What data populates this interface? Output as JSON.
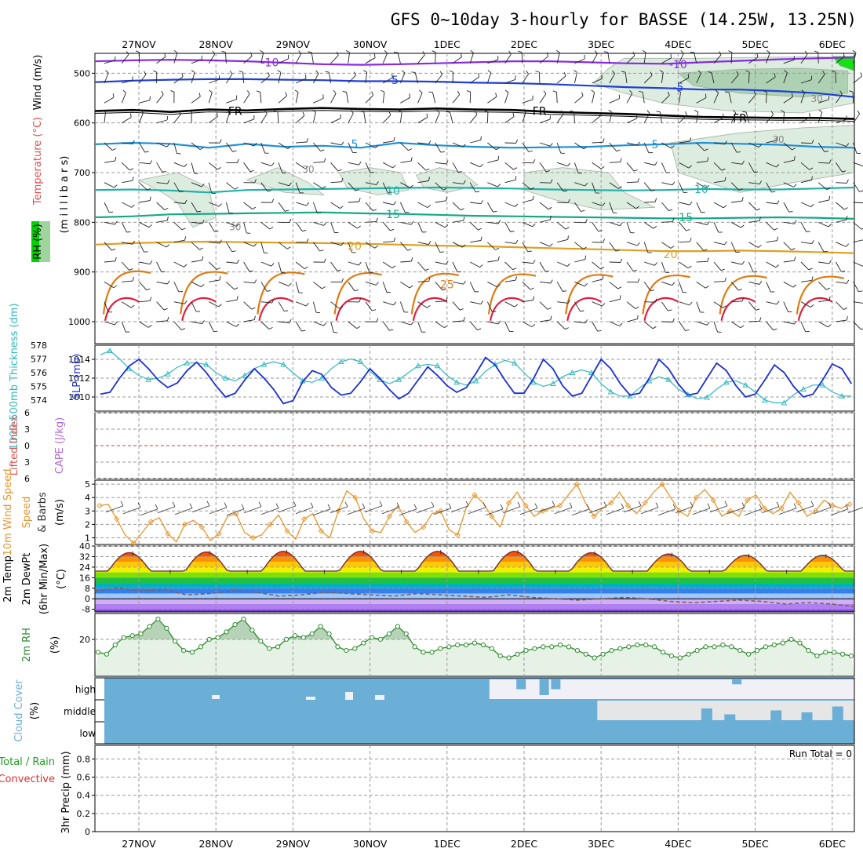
{
  "title": "GFS 0~10day 3-hourly for BASSE (14.25W, 13.25N)",
  "date_labels": [
    "27NOV",
    "28NOV",
    "29NOV",
    "30NOV",
    "1DEC",
    "2DEC",
    "3DEC",
    "4DEC",
    "5DEC",
    "6DEC"
  ],
  "colors": {
    "grid": "#9a9a9a",
    "wind_barb": "#222222",
    "rh_fill": "#d9eadb",
    "rh_fill_dark": "#a9cfae",
    "rh_fill_bright": "#00e000",
    "thickness": "#2fb8c0",
    "slp": "#1a2fd0",
    "lifted_zero": "#e03030",
    "wind10m": "#e8952a",
    "temp_fill_high": "#e03000",
    "dewpoint": "#806060",
    "rh2m": "#2e8b2e",
    "rh2m_fill": "#e5f2e5",
    "cloud": "#6baed6",
    "cloud_clear": "#f2f0f7",
    "cloud_mid_clear": "#e6e6e6"
  },
  "chart_data": [
    {
      "type": "line",
      "name": "upper-air-cross-section",
      "y_label_temperature": "Temperature (°C)",
      "y_label_wind": "Wind (m/s)",
      "y_label_rh": "RH (%)",
      "y_label_pressure": "(m i l l i b a r s)",
      "y_ticks": [
        500,
        600,
        700,
        800,
        900,
        1000
      ],
      "ylim": [
        1000,
        460
      ],
      "isotherms": [
        {
          "label": "-10",
          "color": "#8a2be2",
          "levels": [
            476,
            474,
            473,
            474,
            476,
            479,
            482,
            483,
            482,
            480,
            478,
            476,
            476,
            478,
            480,
            481,
            478,
            475,
            472,
            470,
            468
          ]
        },
        {
          "label": "-5",
          "color": "#1f3fd6",
          "levels": [
            518,
            515,
            513,
            512,
            512,
            513,
            514,
            516,
            516,
            517,
            519,
            520,
            522,
            525,
            528,
            530,
            533,
            533,
            536,
            540,
            548
          ]
        },
        {
          "label": "FR",
          "color": "#000000",
          "levels": [
            576,
            574,
            578,
            573,
            575,
            572,
            570,
            572,
            573,
            571,
            573,
            574,
            578,
            580,
            582,
            585,
            588,
            589,
            590,
            590,
            592
          ]
        },
        {
          "label": "5",
          "color": "#1e90d8",
          "levels": [
            643,
            640,
            642,
            650,
            642,
            648,
            646,
            650,
            640,
            645,
            648,
            650,
            649,
            648,
            645,
            643,
            640,
            642,
            644,
            648,
            650
          ]
        },
        {
          "label": "10",
          "color": "#20b2aa",
          "levels": [
            735,
            734,
            736,
            740,
            735,
            734,
            733,
            732,
            731,
            730,
            731,
            732,
            734,
            735,
            736,
            735,
            733,
            734,
            734,
            732,
            730
          ]
        },
        {
          "label": "15",
          "color": "#16a885",
          "levels": [
            790,
            788,
            784,
            783,
            782,
            781,
            780,
            782,
            783,
            785,
            787,
            788,
            789,
            790,
            791,
            792,
            792,
            791,
            790,
            791,
            793
          ]
        },
        {
          "label": "20",
          "color": "#e0a020",
          "levels": [
            845,
            842,
            840,
            839,
            840,
            841,
            842,
            843,
            845,
            847,
            848,
            850,
            852,
            854,
            856,
            858,
            858,
            857,
            858,
            860,
            862
          ]
        },
        {
          "label": "25",
          "color": "#e07a10",
          "levels": [
            930,
            900,
            932,
            900,
            934,
            902,
            935,
            903,
            936,
            905,
            937,
            906,
            938,
            908,
            940,
            910,
            942,
            912,
            945,
            915,
            948
          ]
        }
      ],
      "isotherm_labels": [
        {
          "label": "-10",
          "day": 1.7,
          "p": 478
        },
        {
          "label": "-10",
          "day": 7.0,
          "p": 482
        },
        {
          "label": "-5",
          "day": 3.3,
          "p": 514
        },
        {
          "label": "-5",
          "day": 7.0,
          "p": 528
        },
        {
          "label": "FR",
          "day": 1.25,
          "p": 576
        },
        {
          "label": "FR",
          "day": 5.2,
          "p": 576
        },
        {
          "label": "FR",
          "day": 7.8,
          "p": 590
        },
        {
          "label": "5",
          "day": 2.8,
          "p": 642
        },
        {
          "label": "5",
          "day": 6.7,
          "p": 643
        },
        {
          "label": "10",
          "day": 3.3,
          "p": 736
        },
        {
          "label": "10",
          "day": 7.3,
          "p": 733
        },
        {
          "label": "15",
          "day": 3.3,
          "p": 784
        },
        {
          "label": "15",
          "day": 7.1,
          "p": 790
        },
        {
          "label": "20",
          "day": 2.8,
          "p": 848
        },
        {
          "label": "20",
          "day": 6.9,
          "p": 864
        },
        {
          "label": "25",
          "day": 4.0,
          "p": 925
        }
      ],
      "rh_contour_labels": [
        {
          "label": "30",
          "day": 1.25,
          "p": 816
        },
        {
          "label": "30",
          "day": 8.3,
          "p": 640
        },
        {
          "label": "30",
          "day": 2.2,
          "p": 700
        },
        {
          "label": "30",
          "day": 8.8,
          "p": 558
        }
      ]
    },
    {
      "type": "line",
      "name": "thickness-slp",
      "y_label_thickness": "1000-500mb Thickness (dm)",
      "y_label_slp": "SLP (mb)",
      "thickness_ticks": [
        574,
        575,
        576,
        577,
        578
      ],
      "thickness_ylim": [
        573.2,
        578
      ],
      "slp_ticks": [
        1010,
        1012,
        1014
      ],
      "slp_ylim": [
        1008.5,
        1015.5
      ],
      "x_start_day": 0.0,
      "x_step_hours": 3,
      "thickness": [
        576.9,
        577.3,
        577.6,
        577.0,
        576.3,
        575.8,
        575.5,
        575.6,
        575.9,
        576.4,
        576.7,
        576.7,
        576.6,
        576.0,
        575.6,
        575.4,
        575.8,
        576.3,
        576.6,
        576.8,
        576.6,
        576.0,
        575.4,
        575.3,
        575.6,
        576.3,
        576.8,
        577.0,
        576.8,
        576.1,
        575.5,
        575.2,
        575.5,
        576.0,
        576.5,
        576.6,
        576.5,
        575.8,
        575.3,
        575.1,
        575.4,
        576.1,
        576.6,
        576.9,
        576.7,
        576.0,
        575.3,
        575.0,
        575.2,
        575.7,
        576.0,
        576.2,
        576.0,
        575.2,
        574.6,
        574.3,
        574.3,
        574.9,
        575.4,
        575.7,
        575.5,
        574.8,
        574.4,
        574.1,
        574.2,
        574.8,
        575.3,
        575.4,
        575.1,
        574.6,
        574.0,
        573.8,
        573.8,
        574.4,
        574.8,
        575.1,
        575.1,
        574.6,
        574.3,
        574.3,
        574.6,
        575.3,
        575.6,
        575.4,
        575.1,
        574.6,
        574.4,
        574.7,
        574.4,
        573.7
      ],
      "slp": [
        1011.4,
        1010.3,
        1010.5,
        1012.0,
        1013.3,
        1014.0,
        1013.0,
        1011.8,
        1011.0,
        1011.5,
        1012.8,
        1013.7,
        1012.6,
        1011.2,
        1010.0,
        1010.4,
        1011.8,
        1013.0,
        1012.0,
        1010.8,
        1009.3,
        1009.6,
        1011.6,
        1012.8,
        1012.4,
        1011.0,
        1010.2,
        1010.4,
        1011.6,
        1013.0,
        1012.0,
        1010.8,
        1009.8,
        1010.4,
        1011.8,
        1013.2,
        1012.3,
        1011.2,
        1010.5,
        1011.0,
        1012.5,
        1014.2,
        1013.4,
        1011.8,
        1010.4,
        1010.4,
        1012.0,
        1014.0,
        1013.0,
        1011.2,
        1010.1,
        1010.4,
        1012.2,
        1014.0,
        1013.0,
        1011.4,
        1010.2,
        1010.4,
        1012.0,
        1014.0,
        1013.0,
        1011.4,
        1010.2,
        1010.4,
        1012.0,
        1013.6,
        1012.8,
        1011.2,
        1010.0,
        1010.3,
        1011.8,
        1013.4,
        1012.6,
        1011.1,
        1010.0,
        1010.3,
        1011.8,
        1013.5,
        1013.0,
        1011.4,
        1010.4,
        1010.7,
        1012.2,
        1013.6,
        1013.8,
        1012.4,
        1012.8,
        1013.2
      ]
    },
    {
      "type": "line",
      "name": "lifted-index-cape",
      "y_label_lifted": "Lifted Index",
      "y_label_cape": "CAPE (J/kg)",
      "y_ticks": [
        -6,
        -3,
        0,
        3,
        6
      ],
      "y_tick_labels": [
        "6",
        "3",
        "0",
        "3",
        "6"
      ],
      "ylim": [
        6,
        -6
      ]
    },
    {
      "type": "line",
      "name": "wind-10m",
      "y_label_speed": "10m Wind Speed",
      "y_label_barbs": "& Barbs",
      "y_label_units": "(m/s)",
      "y_ticks": [
        1,
        2,
        3,
        4,
        5
      ],
      "ylim": [
        0.5,
        5.3
      ],
      "speed": [
        3.4,
        3.5,
        2.4,
        1.2,
        0.6,
        1.4,
        2.2,
        2.5,
        1.3,
        0.7,
        2.0,
        2.3,
        1.8,
        0.8,
        1.3,
        2.6,
        2.8,
        1.4,
        1.0,
        1.2,
        2.0,
        2.7,
        1.5,
        0.9,
        2.4,
        2.8,
        1.5,
        1.0,
        3.0,
        4.5,
        4.0,
        2.4,
        1.5,
        1.4,
        2.6,
        3.4,
        2.2,
        1.4,
        1.8,
        2.8,
        3.0,
        1.6,
        1.2,
        3.2,
        4.2,
        3.6,
        2.6,
        1.8,
        3.6,
        4.4,
        3.4,
        2.6,
        3.0,
        3.2,
        3.4,
        4.2,
        5.0,
        3.6,
        2.6,
        3.2,
        3.6,
        4.4,
        3.4,
        2.8,
        3.6,
        4.4,
        5.0,
        4.0,
        3.0,
        2.6,
        4.0,
        4.6,
        3.8,
        2.6,
        3.0,
        2.6,
        3.8,
        4.2,
        3.2,
        2.8,
        3.2,
        4.4,
        3.6,
        2.6,
        3.0,
        3.8,
        3.4,
        3.2,
        3.5
      ]
    },
    {
      "type": "area",
      "name": "temperature-dewpoint",
      "y_label_temp": "2m Temp",
      "y_label_dewpt": "2m DewPt",
      "y_label_minmax": "(6hr Min/Max)",
      "y_label_units": "(°C)",
      "y_ticks": [
        -8,
        0,
        8,
        16,
        24,
        32,
        40
      ],
      "ylim": [
        -10,
        40
      ],
      "temp_daily_max": [
        35,
        35.5,
        36,
        36,
        36,
        36,
        35,
        34,
        33,
        33
      ],
      "temp_daily_min": [
        21,
        21,
        21,
        21,
        21,
        21,
        21,
        21,
        21,
        21
      ],
      "dewpoint": [
        6,
        8,
        6,
        7,
        3,
        4,
        6,
        5,
        2,
        3,
        5,
        4,
        3,
        2,
        4,
        3,
        2,
        1,
        3,
        1,
        0,
        -1,
        0,
        1,
        0,
        -2,
        -3,
        -2,
        -1,
        -2,
        -4,
        -3,
        -4,
        -6
      ]
    },
    {
      "type": "area",
      "name": "relative-humidity-2m",
      "y_label": "2m RH",
      "y_label_units": "(%)",
      "y_ticks": [
        20
      ],
      "ylim": [
        0,
        34
      ],
      "values": [
        13,
        12,
        17,
        21,
        22,
        23,
        27,
        31,
        26,
        19,
        14,
        13,
        16,
        20,
        21,
        24,
        28,
        31,
        25,
        19,
        15,
        16,
        20,
        22,
        21,
        23,
        27,
        23,
        16,
        14,
        15,
        18,
        21,
        20,
        23,
        27,
        23,
        16,
        13,
        13,
        15,
        16,
        17,
        17,
        18,
        17,
        15,
        11,
        10,
        12,
        14,
        15,
        16,
        16,
        17,
        16,
        14,
        12,
        10,
        12,
        14,
        15,
        16,
        17,
        17,
        16,
        13,
        11,
        10,
        12,
        14,
        16,
        16,
        17,
        16,
        14,
        12,
        14,
        16,
        17,
        18,
        20,
        18,
        14,
        11,
        13,
        13,
        12,
        11
      ]
    },
    {
      "type": "heatmap",
      "name": "cloud-cover",
      "y_label": "Cloud Cover",
      "y_label_units": "(%)",
      "levels": [
        "high",
        "middle",
        "low"
      ],
      "high_clear_start_day": 4.55,
      "high_partial_cols": [
        {
          "day": 4.9,
          "depth": 0.5
        },
        {
          "day": 5.2,
          "depth": 0.8
        },
        {
          "day": 5.35,
          "depth": 0.5
        },
        {
          "day": 7.7,
          "depth": 0.25
        }
      ],
      "middle_clear_start_day": 5.95,
      "middle_partial_cols": [
        {
          "day": 7.3,
          "depth": 0.6
        },
        {
          "day": 7.6,
          "depth": 0.3
        },
        {
          "day": 8.2,
          "depth": 0.5
        },
        {
          "day": 8.6,
          "depth": 0.4
        },
        {
          "day": 9.0,
          "depth": 0.7
        },
        {
          "day": 9.4,
          "depth": 0.6
        }
      ]
    },
    {
      "type": "bar",
      "name": "precipitation",
      "y_label_total": "Total / Rain",
      "y_label_conv": "Convective",
      "y_label": "3hr Precip (mm)",
      "y_ticks": [
        0,
        0.2,
        0.4,
        0.6,
        0.8
      ],
      "ylim": [
        0,
        0.95
      ],
      "run_total_text": "Run Total = 0",
      "values": []
    }
  ]
}
